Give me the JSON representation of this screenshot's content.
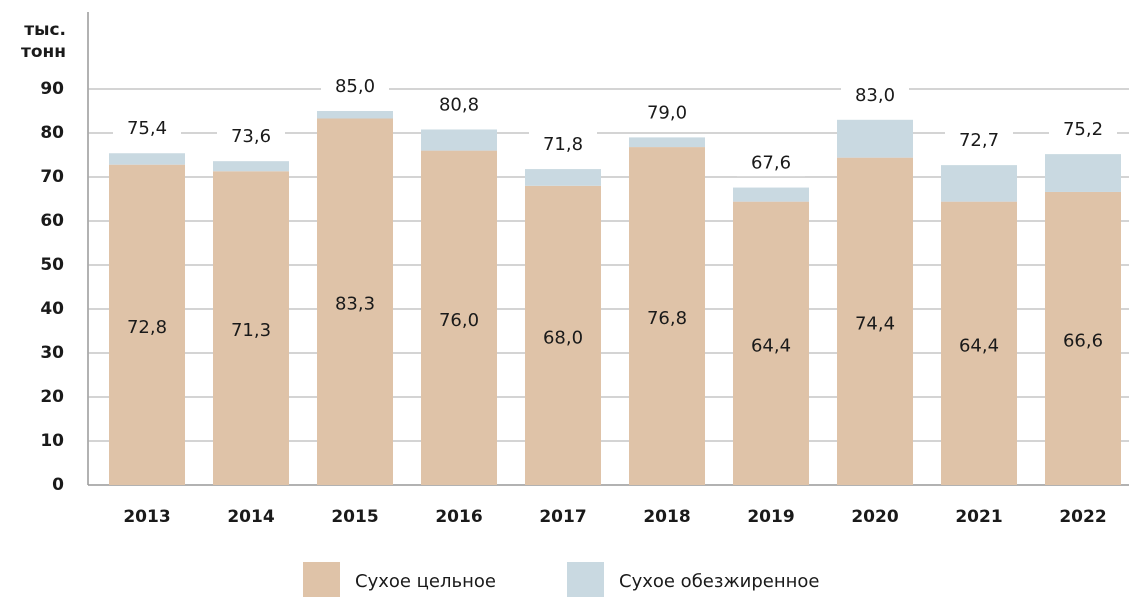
{
  "chart_data": {
    "type": "stacked_bar",
    "ylabel": [
      "тыс.",
      "тонн"
    ],
    "categories": [
      "2013",
      "2014",
      "2015",
      "2016",
      "2017",
      "2018",
      "2019",
      "2020",
      "2021",
      "2022"
    ],
    "series": [
      {
        "name": "Сухое цельное",
        "color": "#dfc3a8",
        "values": [
          72.8,
          71.3,
          83.3,
          76.0,
          68.0,
          76.8,
          64.4,
          74.4,
          64.4,
          66.6
        ],
        "value_labels": [
          "72,8",
          "71,3",
          "83,3",
          "76,0",
          "68,0",
          "76,8",
          "64,4",
          "74,4",
          "64,4",
          "66,6"
        ]
      },
      {
        "name": "Сухое обезжиренное",
        "color": "#c9d9e1",
        "values": [
          2.6,
          2.3,
          1.7,
          4.8,
          3.8,
          2.2,
          3.2,
          8.6,
          8.3,
          8.6
        ]
      }
    ],
    "totals": [
      75.4,
      73.6,
      85.0,
      80.8,
      71.8,
      79.0,
      67.6,
      83.0,
      72.7,
      75.2
    ],
    "total_labels": [
      "75,4",
      "73,6",
      "85,0",
      "80,8",
      "71,8",
      "79,0",
      "67,6",
      "83,0",
      "72,7",
      "75,2"
    ],
    "ylim": [
      0,
      90
    ],
    "yticks": [
      0,
      10,
      20,
      30,
      40,
      50,
      60,
      70,
      80,
      90
    ],
    "grid": true
  }
}
